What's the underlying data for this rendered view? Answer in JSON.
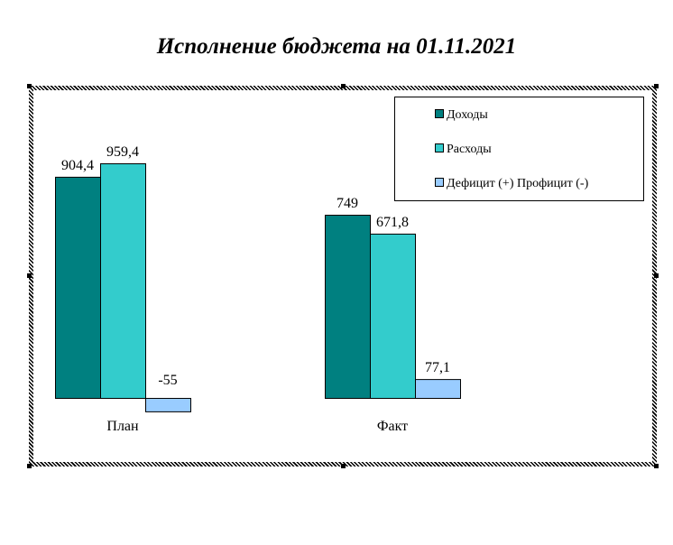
{
  "chart_data": {
    "type": "bar",
    "title": "Исполнение бюджета на 01.11.2021",
    "categories": [
      "План",
      "Факт"
    ],
    "series": [
      {
        "name": "Доходы",
        "values": [
          904.4,
          749
        ],
        "labels": [
          "904,4",
          "749"
        ],
        "color": "#008080"
      },
      {
        "name": "Расходы",
        "values": [
          959.4,
          671.8
        ],
        "labels": [
          "959,4",
          "671,8"
        ],
        "color": "#33CCCC"
      },
      {
        "name": "Дефицит (+) Профицит (-)",
        "values": [
          -55,
          77.1
        ],
        "labels": [
          "-55",
          "77,1"
        ],
        "color": "#99CCFF"
      }
    ],
    "legend": "top-right",
    "grid": false,
    "xlabel": "",
    "ylabel": ""
  }
}
